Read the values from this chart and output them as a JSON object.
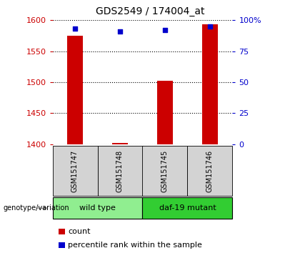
{
  "title": "GDS2549 / 174004_at",
  "samples": [
    "GSM151747",
    "GSM151748",
    "GSM151745",
    "GSM151746"
  ],
  "counts": [
    1575,
    1402,
    1502,
    1594
  ],
  "percentile_ranks": [
    93,
    91,
    92,
    95
  ],
  "ylim_left": [
    1400,
    1600
  ],
  "yticks_left": [
    1400,
    1450,
    1500,
    1550,
    1600
  ],
  "ylim_right": [
    0,
    100
  ],
  "yticks_right": [
    0,
    25,
    50,
    75,
    100
  ],
  "bar_color": "#cc0000",
  "dot_color": "#0000cc",
  "bar_width": 0.35,
  "groups": [
    {
      "label": "wild type",
      "samples": [
        0,
        1
      ],
      "color": "#90ee90"
    },
    {
      "label": "daf-19 mutant",
      "samples": [
        2,
        3
      ],
      "color": "#32cd32"
    }
  ],
  "grid_style": "dotted",
  "grid_color": "#000000",
  "background_color": "#ffffff",
  "plot_bg_color": "#ffffff",
  "left_tick_color": "#cc0000",
  "right_tick_color": "#0000cc",
  "title_fontsize": 10,
  "tick_fontsize": 8,
  "sample_fontsize": 7,
  "group_fontsize": 8,
  "legend_fontsize": 8,
  "genotype_label": "genotype/variation",
  "legend_items": [
    {
      "label": "count",
      "color": "#cc0000"
    },
    {
      "label": "percentile rank within the sample",
      "color": "#0000cc"
    }
  ]
}
